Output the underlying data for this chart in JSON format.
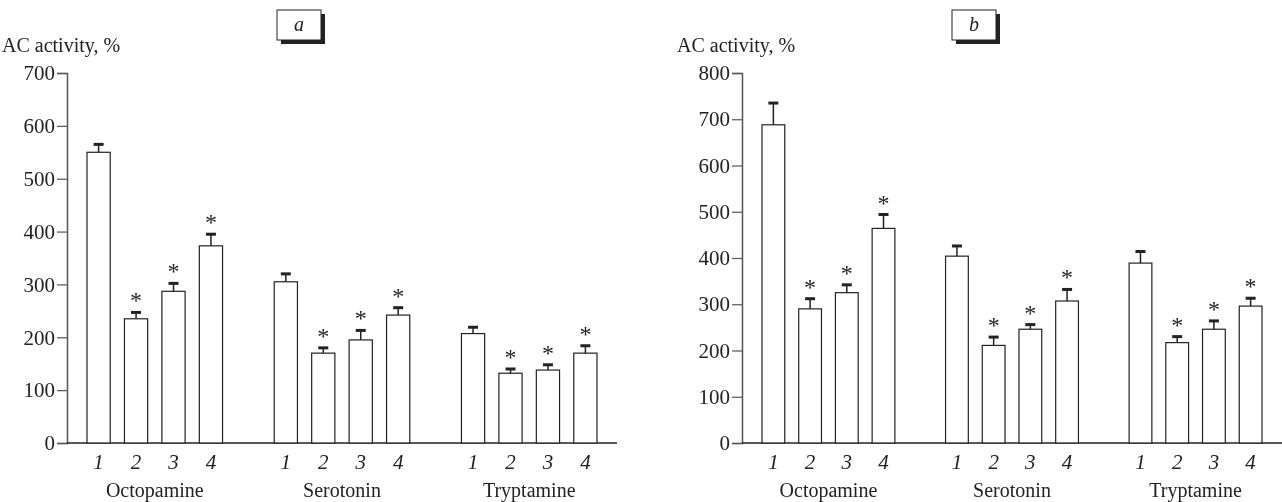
{
  "chart_data": [
    {
      "type": "bar",
      "title": "a",
      "ylabel": "AC activity, %",
      "categories": [
        "1",
        "2",
        "3",
        "4",
        null,
        "1",
        "2",
        "3",
        "4",
        null,
        "1",
        "2",
        "3",
        "4"
      ],
      "values": [
        550,
        235,
        287,
        373,
        null,
        305,
        170,
        195,
        242,
        null,
        207,
        132,
        138,
        170
      ],
      "errors": [
        [
          550,
          565
        ],
        [
          235,
          247
        ],
        [
          287,
          302
        ],
        [
          373,
          395
        ],
        null,
        [
          305,
          320
        ],
        [
          170,
          180
        ],
        [
          195,
          213
        ],
        [
          242,
          256
        ],
        null,
        [
          207,
          219
        ],
        [
          132,
          140
        ],
        [
          138,
          148
        ],
        [
          170,
          184
        ]
      ],
      "value_labels": [
        null,
        "*",
        "*",
        "*",
        null,
        null,
        "*",
        "*",
        "*",
        null,
        null,
        "*",
        "*",
        "*"
      ],
      "color": "#ffffff",
      "ylim": [
        0,
        700
      ],
      "yticks": [
        0,
        100,
        200,
        300,
        400,
        500,
        600,
        700
      ],
      "annotations": [
        "Octopamine",
        "Serotonin",
        "Tryptamine"
      ]
    },
    {
      "type": "bar",
      "title": "b",
      "ylabel": "AC activity, %",
      "categories": [
        "1",
        "2",
        "3",
        "4",
        null,
        "1",
        "2",
        "3",
        "4",
        null,
        "1",
        "2",
        "3",
        "4"
      ],
      "values": [
        688,
        290,
        325,
        464,
        null,
        404,
        211,
        246,
        307,
        null,
        389,
        217,
        246,
        296
      ],
      "errors": [
        [
          688,
          735
        ],
        [
          290,
          312
        ],
        [
          325,
          342
        ],
        [
          464,
          494
        ],
        null,
        [
          404,
          426
        ],
        [
          211,
          229
        ],
        [
          246,
          256
        ],
        [
          307,
          332
        ],
        null,
        [
          389,
          414
        ],
        [
          217,
          230
        ],
        [
          246,
          264
        ],
        [
          296,
          313
        ]
      ],
      "value_labels": [
        null,
        "*",
        "*",
        "*",
        null,
        null,
        "*",
        "*",
        "*",
        null,
        null,
        "*",
        "*",
        "*"
      ],
      "color": "#ffffff",
      "ylim": [
        0,
        800
      ],
      "yticks": [
        0,
        100,
        200,
        300,
        400,
        500,
        600,
        700,
        800
      ],
      "annotations": [
        "Octopamine",
        "Serotonin",
        "Tryptamine"
      ]
    }
  ]
}
